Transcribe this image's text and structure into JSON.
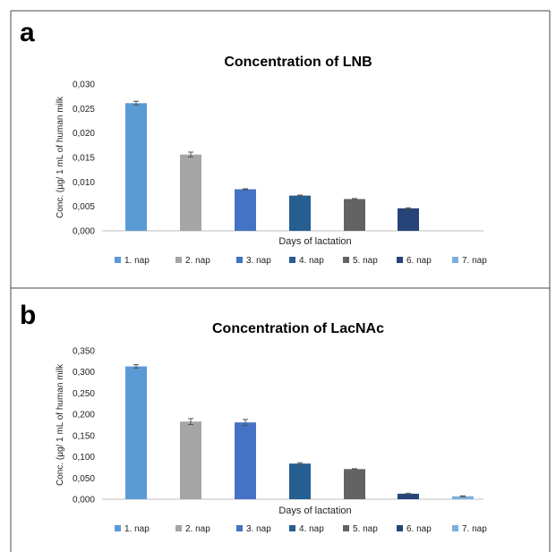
{
  "chart_data": [
    {
      "type": "bar",
      "panel_label": "a",
      "title": "Concentration of LNB",
      "xlabel": "Days of lactation",
      "ylabel": "Conc. (µg/ 1 mL of human milk",
      "ylim": [
        0,
        0.03
      ],
      "yticks": [
        "0,000",
        "0,005",
        "0,010",
        "0,015",
        "0,020",
        "0,025",
        "0,030"
      ],
      "grid": false,
      "legend_position": "bottom",
      "series": [
        {
          "name": "1. nap",
          "value": 0.0261,
          "error": 0.0004,
          "color": "#5b9bd5"
        },
        {
          "name": "2. nap",
          "value": 0.0156,
          "error": 0.0005,
          "color": "#a5a5a5"
        },
        {
          "name": "3. nap",
          "value": 0.0085,
          "error": 0.0001,
          "color": "#4472c4"
        },
        {
          "name": "4. nap",
          "value": 0.0072,
          "error": 0.0001,
          "color": "#255e91"
        },
        {
          "name": "5. nap",
          "value": 0.0065,
          "error": 0.0001,
          "color": "#636363"
        },
        {
          "name": "6. nap",
          "value": 0.0046,
          "error": 0.0001,
          "color": "#264478"
        },
        {
          "name": "7. nap",
          "value": 0,
          "error": 0,
          "color": "#7cafdd"
        }
      ]
    },
    {
      "type": "bar",
      "panel_label": "b",
      "title": "Concentration of LacNAc",
      "xlabel": "Days of lactation",
      "ylabel": "Conc. (µg/ 1 mL of human milk",
      "ylim": [
        0,
        0.35
      ],
      "yticks": [
        "0,000",
        "0,050",
        "0,100",
        "0,150",
        "0,200",
        "0,250",
        "0,300",
        "0,350"
      ],
      "grid": false,
      "legend_position": "bottom",
      "series": [
        {
          "name": "1. nap",
          "value": 0.313,
          "error": 0.004,
          "color": "#5b9bd5"
        },
        {
          "name": "2. nap",
          "value": 0.183,
          "error": 0.007,
          "color": "#a5a5a5"
        },
        {
          "name": "3. nap",
          "value": 0.181,
          "error": 0.007,
          "color": "#4472c4"
        },
        {
          "name": "4. nap",
          "value": 0.084,
          "error": 0.002,
          "color": "#255e91"
        },
        {
          "name": "5. nap",
          "value": 0.071,
          "error": 0.001,
          "color": "#636363"
        },
        {
          "name": "6. nap",
          "value": 0.013,
          "error": 0.001,
          "color": "#264478"
        },
        {
          "name": "7. nap",
          "value": 0.007,
          "error": 0.001,
          "color": "#7cafdd"
        }
      ]
    }
  ]
}
